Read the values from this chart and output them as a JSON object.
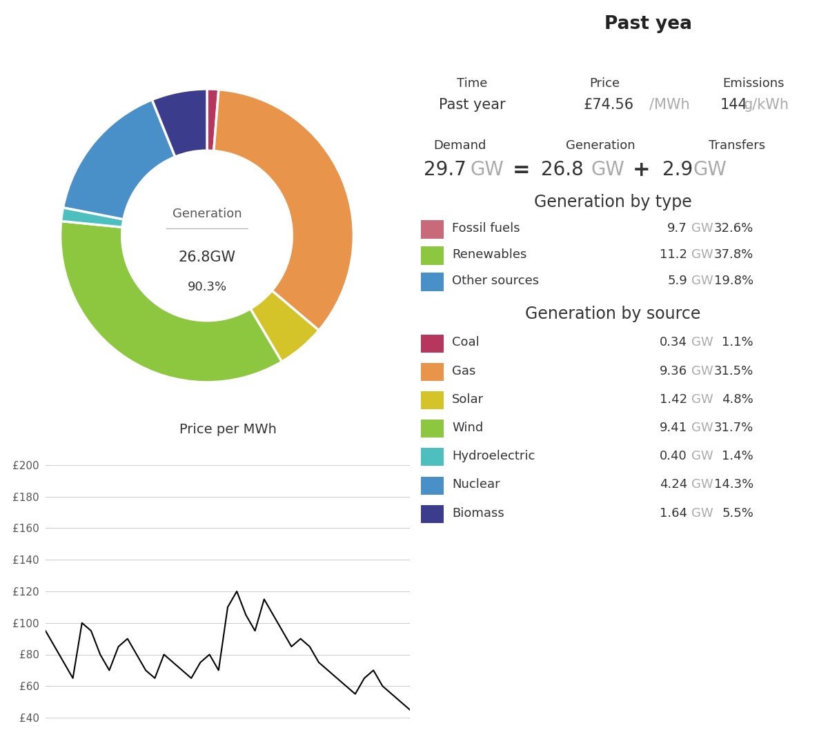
{
  "header_bg_color": "#999999",
  "header_text_color": "#ffffff",
  "bg_color": "#ffffff",
  "donut_center_label1": "Generation",
  "donut_center_value": "26.8GW",
  "donut_center_pct": "90.3%",
  "donut_segments": [
    {
      "label": "Coal",
      "value": 0.34,
      "color": "#b5375e"
    },
    {
      "label": "Gas",
      "value": 9.36,
      "color": "#e8944a"
    },
    {
      "label": "Solar",
      "value": 1.42,
      "color": "#d4c429"
    },
    {
      "label": "Wind",
      "value": 9.41,
      "color": "#8dc63f"
    },
    {
      "label": "Hydroelectric",
      "value": 0.4,
      "color": "#4dbfbf"
    },
    {
      "label": "Nuclear",
      "value": 4.24,
      "color": "#4a90c8"
    },
    {
      "label": "Biomass",
      "value": 1.64,
      "color": "#3c3c8c"
    }
  ],
  "time_label": "Time",
  "time_value": "Past year",
  "price_label": "Price",
  "price_value": "£74.56",
  "price_unit": "/MWh",
  "emissions_label": "Emissions",
  "emissions_value": "144",
  "emissions_unit": "g/kWh",
  "demand_label": "Demand",
  "demand_value": "29.7",
  "demand_unit": "GW",
  "generation_label": "Generation",
  "generation_value": "26.8",
  "generation_unit": "GW",
  "transfers_label": "Transfers",
  "transfers_value": "2.9",
  "transfers_unit": "GW",
  "gen_by_type_title": "Generation by type",
  "gen_by_type": [
    {
      "label": "Fossil fuels",
      "gw": "9.7",
      "pct": "32.6",
      "color": "#c96a7a"
    },
    {
      "label": "Renewables",
      "gw": "11.2",
      "pct": "37.8",
      "color": "#8dc63f"
    },
    {
      "label": "Other sources",
      "gw": "5.9",
      "pct": "19.8",
      "color": "#4a90c8"
    }
  ],
  "gen_by_source_title": "Generation by source",
  "gen_by_source": [
    {
      "label": "Coal",
      "gw": "0.34",
      "pct": "1.1",
      "color": "#b5375e"
    },
    {
      "label": "Gas",
      "gw": "9.36",
      "pct": "31.5",
      "color": "#e8944a"
    },
    {
      "label": "Solar",
      "gw": "1.42",
      "pct": "4.8",
      "color": "#d4c429"
    },
    {
      "label": "Wind",
      "gw": "9.41",
      "pct": "31.7",
      "color": "#8dc63f"
    },
    {
      "label": "Hydroelectric",
      "gw": "0.40",
      "pct": "1.4",
      "color": "#4dbfbf"
    },
    {
      "label": "Nuclear",
      "gw": "4.24",
      "pct": "14.3",
      "color": "#4a90c8"
    },
    {
      "label": "Biomass",
      "gw": "1.64",
      "pct": "5.5",
      "color": "#3c3c8c"
    }
  ],
  "price_chart_title": "Price per MWh",
  "price_yticks": [
    "£40",
    "£60",
    "£80",
    "£100",
    "£120",
    "£140",
    "£160",
    "£180",
    "£200"
  ],
  "price_ytick_vals": [
    40,
    60,
    80,
    100,
    120,
    140,
    160,
    180,
    200
  ],
  "price_data": [
    95,
    85,
    75,
    65,
    100,
    95,
    80,
    70,
    85,
    90,
    80,
    70,
    65,
    80,
    75,
    70,
    65,
    75,
    80,
    70,
    110,
    120,
    105,
    95,
    115,
    105,
    95,
    85,
    90,
    85,
    75,
    70,
    65,
    60,
    55,
    65,
    70,
    60,
    55,
    50,
    45
  ]
}
